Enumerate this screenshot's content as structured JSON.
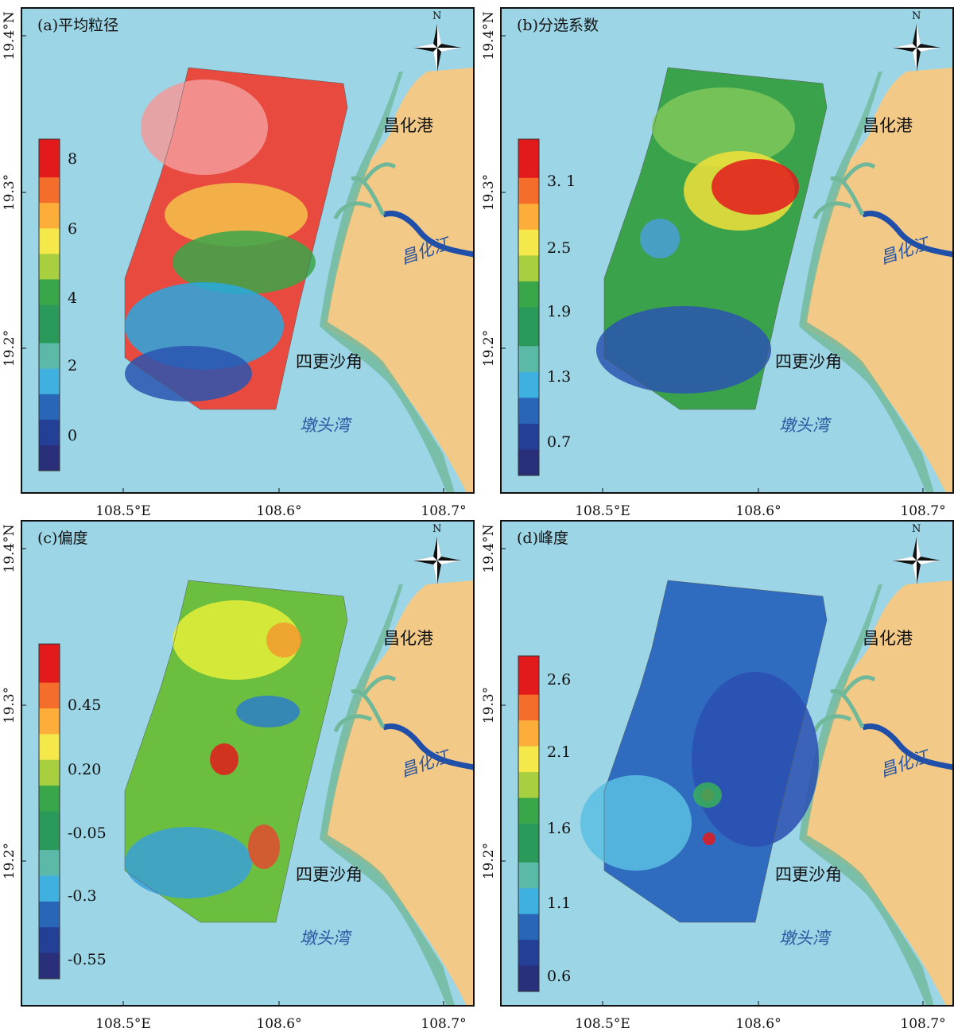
{
  "panels": [
    {
      "title": "(a)平均粒径",
      "legend": [
        "8",
        "6",
        "4",
        "2",
        "0"
      ]
    },
    {
      "title": "(b)分选系数",
      "legend": [
        "3. 1",
        "2.5",
        "1.9",
        "1.3",
        "0.7"
      ]
    },
    {
      "title": "(c)偏度",
      "legend": [
        "0.45",
        "0.20",
        "-0.05",
        "-0.3",
        "-0.55"
      ]
    },
    {
      "title": "(d)峰度",
      "legend": [
        "2.6",
        "2.1",
        "1.6",
        "1.1",
        "0.6"
      ]
    }
  ],
  "places": {
    "port": "昌化港",
    "river": "昌化江",
    "cape": "四更沙角",
    "bay": "墩头湾"
  },
  "north": "N",
  "x_ticks": [
    "108.5°E",
    "108.6°",
    "108.7°"
  ],
  "y_ticks": [
    "19.2°",
    "19.3°",
    "19.4°N"
  ]
}
